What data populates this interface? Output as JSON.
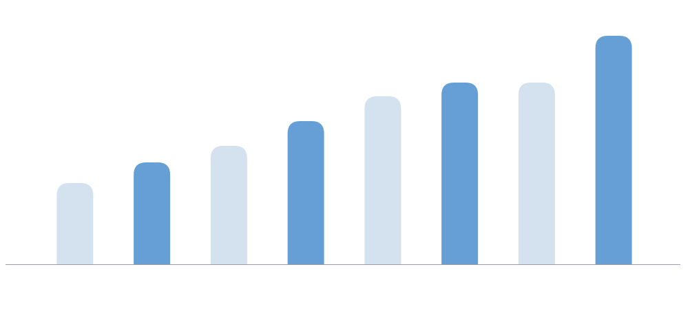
{
  "chart_data": {
    "type": "bar",
    "categories": [
      null,
      null,
      null,
      null,
      null,
      null,
      null,
      null
    ],
    "values": [
      118,
      148,
      172,
      208,
      244,
      264,
      264,
      332
    ],
    "colors": [
      "#d4e1ee",
      "#659fd5",
      "#d4e1ee",
      "#659fd5",
      "#d4e1ee",
      "#659fd5",
      "#d4e1ee",
      "#659fd5"
    ],
    "ylim": [
      0,
      384
    ]
  }
}
